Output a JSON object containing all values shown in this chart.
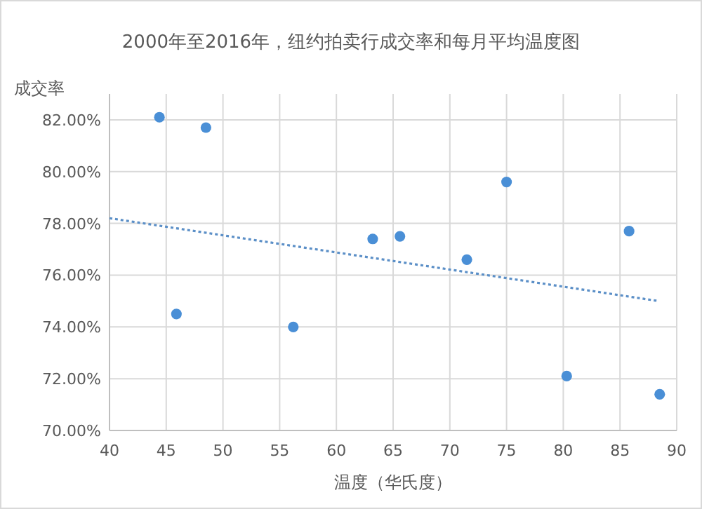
{
  "chart_data": {
    "type": "scatter",
    "title": "2000年至2016年，纽约拍卖行成交率和每月平均温度图",
    "xlabel": "温度（华氏度）",
    "ylabel": "成交率",
    "xlim": [
      40,
      90
    ],
    "xticks": [
      40,
      45,
      50,
      55,
      60,
      65,
      70,
      75,
      80,
      85,
      90
    ],
    "ylim": [
      70,
      83
    ],
    "yticks": [
      {
        "value": 70,
        "label": "70.00%"
      },
      {
        "value": 72,
        "label": "72.00%"
      },
      {
        "value": 74,
        "label": "74.00%"
      },
      {
        "value": 76,
        "label": "76.00%"
      },
      {
        "value": 78,
        "label": "78.00%"
      },
      {
        "value": 80,
        "label": "80.00%"
      },
      {
        "value": 82,
        "label": "82.00%"
      }
    ],
    "grid": true,
    "series": [
      {
        "color": "#4a8fd6",
        "marker": "circle",
        "x": [
          44.4,
          48.5,
          45.9,
          56.2,
          63.2,
          65.6,
          71.5,
          75.0,
          80.3,
          85.8,
          88.5
        ],
        "values": [
          82.1,
          81.7,
          74.5,
          74.0,
          77.4,
          77.5,
          76.6,
          79.6,
          72.1,
          77.7,
          71.4
        ]
      },
      {
        "type": "line",
        "color": "#5b8fc7",
        "line_style": "dotted",
        "x": [
          40,
          88.4
        ],
        "values": [
          78.2,
          75.0
        ]
      }
    ]
  }
}
